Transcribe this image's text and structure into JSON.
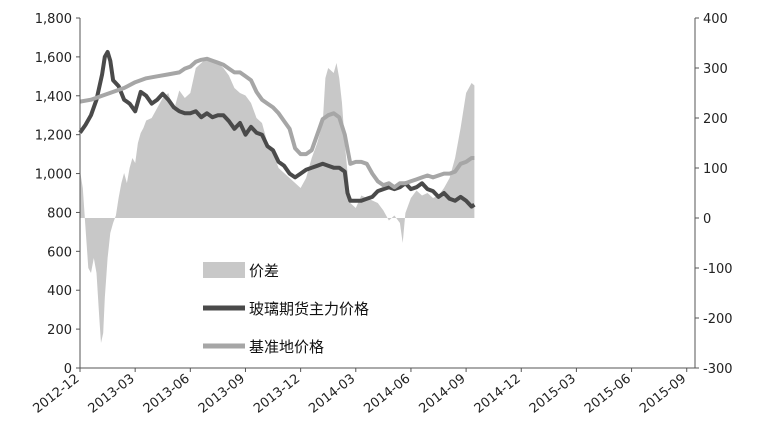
{
  "chart_data": {
    "type": "line",
    "x_categories": [
      "2012-12",
      "2013-03",
      "2013-06",
      "2013-09",
      "2013-12",
      "2014-03",
      "2014-06",
      "2014-09",
      "2014-12",
      "2015-03",
      "2015-06",
      "2015-09"
    ],
    "left_axis": {
      "ylim": [
        0,
        1800
      ],
      "ticks": [
        "0",
        "200",
        "400",
        "600",
        "800",
        "1,000",
        "1,200",
        "1,400",
        "1,600",
        "1,800"
      ]
    },
    "right_axis": {
      "ylim": [
        -300,
        400
      ],
      "ticks": [
        "-300",
        "-200",
        "-100",
        "0",
        "100",
        "200",
        "300",
        "400"
      ]
    },
    "legend": {
      "placement": "center-left",
      "entries": [
        "价差",
        "玻璃期货主力价格",
        "基准地价格"
      ]
    },
    "series": [
      {
        "name": "价差",
        "type": "area",
        "axis": "right",
        "color": "#c8c8c8",
        "points": [
          [
            0,
            95
          ],
          [
            0.05,
            60
          ],
          [
            0.1,
            -20
          ],
          [
            0.15,
            -100
          ],
          [
            0.2,
            -110
          ],
          [
            0.25,
            -80
          ],
          [
            0.3,
            -110
          ],
          [
            0.35,
            -200
          ],
          [
            0.38,
            -250
          ],
          [
            0.42,
            -230
          ],
          [
            0.45,
            -160
          ],
          [
            0.5,
            -80
          ],
          [
            0.55,
            -30
          ],
          [
            0.6,
            -10
          ],
          [
            0.65,
            5
          ],
          [
            0.7,
            40
          ],
          [
            0.75,
            70
          ],
          [
            0.8,
            90
          ],
          [
            0.85,
            70
          ],
          [
            0.9,
            100
          ],
          [
            0.95,
            120
          ],
          [
            1.0,
            110
          ],
          [
            1.05,
            150
          ],
          [
            1.1,
            170
          ],
          [
            1.15,
            180
          ],
          [
            1.2,
            195
          ],
          [
            1.3,
            200
          ],
          [
            1.4,
            220
          ],
          [
            1.5,
            240
          ],
          [
            1.6,
            250
          ],
          [
            1.7,
            215
          ],
          [
            1.8,
            255
          ],
          [
            1.9,
            240
          ],
          [
            2.0,
            250
          ],
          [
            2.1,
            300
          ],
          [
            2.2,
            310
          ],
          [
            2.3,
            320
          ],
          [
            2.4,
            315
          ],
          [
            2.5,
            310
          ],
          [
            2.6,
            300
          ],
          [
            2.7,
            285
          ],
          [
            2.8,
            260
          ],
          [
            2.9,
            250
          ],
          [
            3.0,
            245
          ],
          [
            3.1,
            230
          ],
          [
            3.2,
            200
          ],
          [
            3.3,
            190
          ],
          [
            3.4,
            150
          ],
          [
            3.5,
            130
          ],
          [
            3.6,
            100
          ],
          [
            3.7,
            90
          ],
          [
            3.8,
            80
          ],
          [
            3.9,
            70
          ],
          [
            4.0,
            60
          ],
          [
            4.1,
            80
          ],
          [
            4.2,
            120
          ],
          [
            4.3,
            150
          ],
          [
            4.4,
            190
          ],
          [
            4.45,
            280
          ],
          [
            4.5,
            300
          ],
          [
            4.6,
            290
          ],
          [
            4.65,
            310
          ],
          [
            4.7,
            280
          ],
          [
            4.75,
            230
          ],
          [
            4.8,
            150
          ],
          [
            4.9,
            30
          ],
          [
            5.0,
            20
          ],
          [
            5.1,
            45
          ],
          [
            5.2,
            40
          ],
          [
            5.3,
            35
          ],
          [
            5.4,
            30
          ],
          [
            5.5,
            15
          ],
          [
            5.6,
            -5
          ],
          [
            5.7,
            5
          ],
          [
            5.8,
            -10
          ],
          [
            5.85,
            -50
          ],
          [
            5.9,
            10
          ],
          [
            6.0,
            40
          ],
          [
            6.1,
            55
          ],
          [
            6.2,
            45
          ],
          [
            6.3,
            50
          ],
          [
            6.4,
            40
          ],
          [
            6.5,
            45
          ],
          [
            6.6,
            60
          ],
          [
            6.7,
            80
          ],
          [
            6.8,
            120
          ],
          [
            6.9,
            180
          ],
          [
            7.0,
            250
          ],
          [
            7.1,
            270
          ],
          [
            7.15,
            265
          ]
        ]
      },
      {
        "name": "玻璃期货主力价格",
        "type": "line",
        "axis": "left",
        "color": "#4a4a4a",
        "points": [
          [
            0,
            1210
          ],
          [
            0.1,
            1250
          ],
          [
            0.2,
            1300
          ],
          [
            0.3,
            1380
          ],
          [
            0.4,
            1510
          ],
          [
            0.45,
            1600
          ],
          [
            0.5,
            1625
          ],
          [
            0.55,
            1580
          ],
          [
            0.6,
            1480
          ],
          [
            0.7,
            1450
          ],
          [
            0.8,
            1380
          ],
          [
            0.9,
            1360
          ],
          [
            1.0,
            1320
          ],
          [
            1.1,
            1420
          ],
          [
            1.2,
            1400
          ],
          [
            1.3,
            1360
          ],
          [
            1.4,
            1380
          ],
          [
            1.5,
            1410
          ],
          [
            1.6,
            1380
          ],
          [
            1.7,
            1340
          ],
          [
            1.8,
            1320
          ],
          [
            1.9,
            1310
          ],
          [
            2.0,
            1310
          ],
          [
            2.1,
            1320
          ],
          [
            2.2,
            1290
          ],
          [
            2.3,
            1310
          ],
          [
            2.4,
            1290
          ],
          [
            2.5,
            1300
          ],
          [
            2.6,
            1300
          ],
          [
            2.7,
            1270
          ],
          [
            2.8,
            1230
          ],
          [
            2.9,
            1260
          ],
          [
            3.0,
            1200
          ],
          [
            3.1,
            1240
          ],
          [
            3.2,
            1210
          ],
          [
            3.3,
            1200
          ],
          [
            3.4,
            1140
          ],
          [
            3.5,
            1120
          ],
          [
            3.6,
            1060
          ],
          [
            3.7,
            1040
          ],
          [
            3.8,
            1000
          ],
          [
            3.9,
            980
          ],
          [
            4.0,
            1000
          ],
          [
            4.1,
            1020
          ],
          [
            4.2,
            1030
          ],
          [
            4.3,
            1040
          ],
          [
            4.4,
            1050
          ],
          [
            4.5,
            1040
          ],
          [
            4.6,
            1030
          ],
          [
            4.7,
            1030
          ],
          [
            4.8,
            1010
          ],
          [
            4.85,
            900
          ],
          [
            4.9,
            860
          ],
          [
            5.0,
            860
          ],
          [
            5.1,
            860
          ],
          [
            5.2,
            870
          ],
          [
            5.3,
            880
          ],
          [
            5.4,
            910
          ],
          [
            5.5,
            920
          ],
          [
            5.6,
            930
          ],
          [
            5.7,
            920
          ],
          [
            5.8,
            930
          ],
          [
            5.9,
            950
          ],
          [
            6.0,
            920
          ],
          [
            6.1,
            930
          ],
          [
            6.2,
            950
          ],
          [
            6.3,
            920
          ],
          [
            6.4,
            910
          ],
          [
            6.5,
            880
          ],
          [
            6.6,
            900
          ],
          [
            6.7,
            870
          ],
          [
            6.8,
            860
          ],
          [
            6.9,
            880
          ],
          [
            7.0,
            860
          ],
          [
            7.1,
            830
          ],
          [
            7.15,
            840
          ]
        ]
      },
      {
        "name": "基准地价格",
        "type": "line",
        "axis": "left",
        "color": "#a6a6a6",
        "points": [
          [
            0,
            1370
          ],
          [
            0.2,
            1380
          ],
          [
            0.4,
            1400
          ],
          [
            0.6,
            1420
          ],
          [
            0.8,
            1440
          ],
          [
            1.0,
            1470
          ],
          [
            1.2,
            1490
          ],
          [
            1.4,
            1500
          ],
          [
            1.6,
            1510
          ],
          [
            1.8,
            1520
          ],
          [
            1.9,
            1540
          ],
          [
            2.0,
            1550
          ],
          [
            2.1,
            1575
          ],
          [
            2.2,
            1585
          ],
          [
            2.3,
            1590
          ],
          [
            2.4,
            1580
          ],
          [
            2.5,
            1570
          ],
          [
            2.6,
            1560
          ],
          [
            2.7,
            1540
          ],
          [
            2.8,
            1520
          ],
          [
            2.9,
            1520
          ],
          [
            3.0,
            1500
          ],
          [
            3.1,
            1480
          ],
          [
            3.2,
            1420
          ],
          [
            3.3,
            1380
          ],
          [
            3.4,
            1360
          ],
          [
            3.5,
            1340
          ],
          [
            3.6,
            1310
          ],
          [
            3.7,
            1270
          ],
          [
            3.8,
            1230
          ],
          [
            3.9,
            1130
          ],
          [
            4.0,
            1100
          ],
          [
            4.1,
            1100
          ],
          [
            4.2,
            1120
          ],
          [
            4.3,
            1200
          ],
          [
            4.4,
            1280
          ],
          [
            4.45,
            1290
          ],
          [
            4.5,
            1300
          ],
          [
            4.6,
            1310
          ],
          [
            4.7,
            1290
          ],
          [
            4.8,
            1200
          ],
          [
            4.9,
            1050
          ],
          [
            5.0,
            1060
          ],
          [
            5.1,
            1060
          ],
          [
            5.2,
            1050
          ],
          [
            5.3,
            1000
          ],
          [
            5.4,
            960
          ],
          [
            5.5,
            940
          ],
          [
            5.6,
            950
          ],
          [
            5.7,
            930
          ],
          [
            5.8,
            950
          ],
          [
            5.9,
            950
          ],
          [
            6.0,
            960
          ],
          [
            6.1,
            970
          ],
          [
            6.2,
            980
          ],
          [
            6.3,
            990
          ],
          [
            6.4,
            980
          ],
          [
            6.5,
            990
          ],
          [
            6.6,
            1000
          ],
          [
            6.7,
            1000
          ],
          [
            6.8,
            1010
          ],
          [
            6.9,
            1050
          ],
          [
            7.0,
            1060
          ],
          [
            7.1,
            1080
          ],
          [
            7.15,
            1080
          ]
        ]
      }
    ]
  }
}
